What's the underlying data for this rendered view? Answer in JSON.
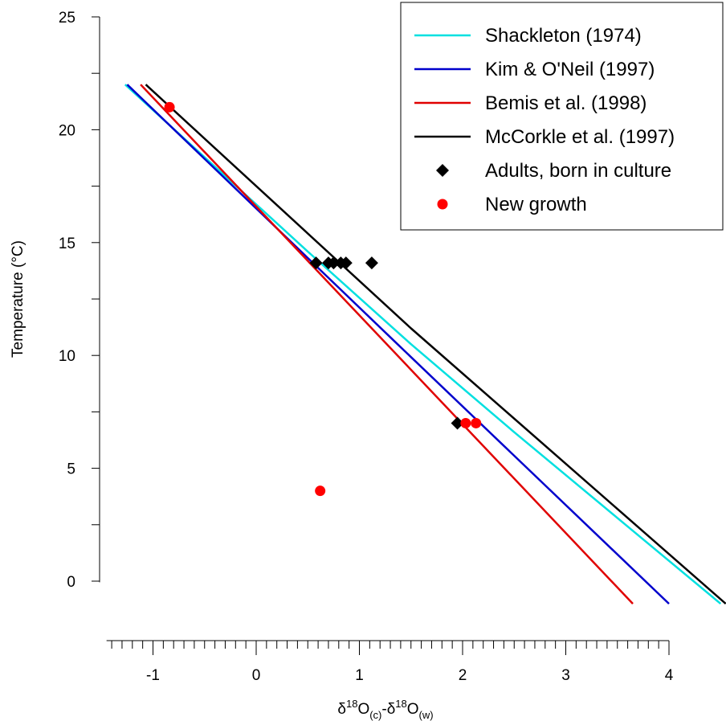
{
  "chart_data": {
    "type": "line",
    "xlabel_parts": [
      "δ",
      "18",
      "O",
      "(c)",
      "-δ",
      "18",
      "O",
      "(w)"
    ],
    "ylabel": "Temperature (°C)",
    "xlim": [
      -1.5,
      4
    ],
    "ylim": [
      -1,
      25
    ],
    "x_ticks": [
      -1,
      0,
      1,
      2,
      3,
      4
    ],
    "x_tick_labels": [
      "-1",
      "0",
      "1",
      "2",
      "3",
      "4"
    ],
    "y_ticks": [
      0,
      5,
      10,
      15,
      20,
      25
    ],
    "y_tick_labels": [
      "0",
      "5",
      "10",
      "15",
      "20",
      "25"
    ],
    "series": [
      {
        "name": "Shackleton (1974)",
        "kind": "line",
        "color": "#00e0e0",
        "x": [
          -1.27,
          0.5,
          1.5,
          2.5,
          3.5,
          4.5
        ],
        "y": [
          22,
          14.6,
          10.5,
          6.6,
          2.8,
          -1
        ]
      },
      {
        "name": "Kim & O'Neil (1997)",
        "kind": "line",
        "color": "#0000cc",
        "x": [
          -1.25,
          1.37,
          4.0
        ],
        "y": [
          22,
          10.5,
          -1
        ]
      },
      {
        "name": "Bemis et al. (1998)",
        "kind": "line",
        "color": "#e00000",
        "x": [
          -1.12,
          3.65
        ],
        "y": [
          22,
          -1
        ]
      },
      {
        "name": "McCorkle et al. (1997)",
        "kind": "line",
        "color": "#000000",
        "x": [
          -1.07,
          1.5,
          4.55
        ],
        "y": [
          22,
          11.2,
          -1
        ]
      },
      {
        "name": "Adults, born in culture",
        "kind": "marker",
        "marker": "diamond",
        "color": "#000000",
        "x": [
          0.58,
          0.7,
          0.75,
          0.82,
          0.87,
          1.12,
          1.95
        ],
        "y": [
          14.1,
          14.1,
          14.1,
          14.1,
          14.1,
          14.1,
          7.0
        ]
      },
      {
        "name": "New growth",
        "kind": "marker",
        "marker": "circle",
        "color": "#ff0000",
        "x": [
          -0.84,
          0.62,
          2.03,
          2.13
        ],
        "y": [
          21.0,
          4.0,
          7.0,
          7.0
        ]
      }
    ],
    "legend_placement": "top-right",
    "grid": false
  }
}
